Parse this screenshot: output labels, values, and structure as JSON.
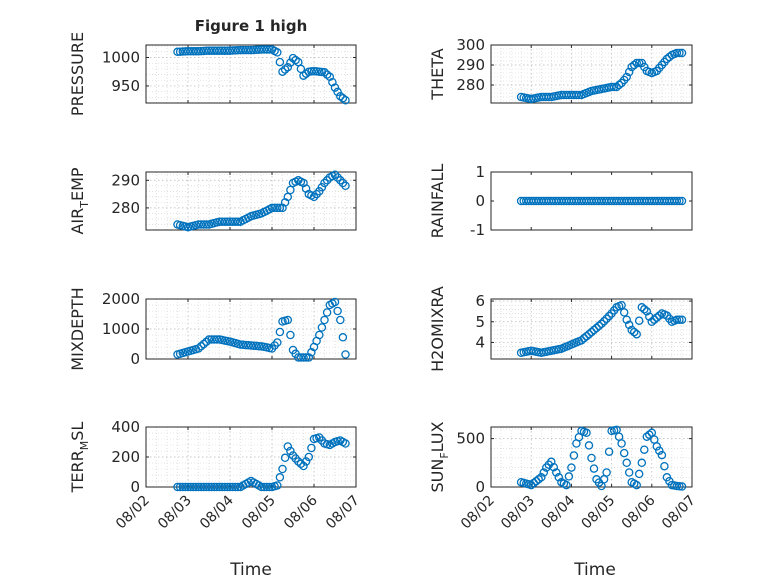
{
  "figure": {
    "title": "Figure 1 high",
    "time_label": "Time",
    "date_ticks": [
      "08/02",
      "08/03",
      "08/04",
      "08/05",
      "08/06",
      "08/07"
    ],
    "marker_color": "#0072BD",
    "marker_shape": "open-circle"
  },
  "chart_data": [
    {
      "type": "scatter",
      "id": "pressure",
      "ylabel": "PRESSURE",
      "ylim": [
        920,
        1022
      ],
      "yticks": [
        950,
        1000
      ],
      "xlim": [
        "08/02",
        "08/07"
      ],
      "grid": true,
      "series": [
        {
          "x": [
            "08/02 18:00",
            "08/03 00:00",
            "08/03 06:00",
            "08/03 12:00",
            "08/03 18:00",
            "08/04 00:00",
            "08/04 06:00",
            "08/04 12:00",
            "08/04 18:00",
            "08/05 00:00",
            "08/05 03:00",
            "08/05 06:00",
            "08/05 09:00",
            "08/05 12:00",
            "08/05 15:00",
            "08/05 18:00",
            "08/05 21:00",
            "08/06 00:00",
            "08/06 03:00",
            "08/06 06:00",
            "08/06 09:00",
            "08/06 12:00",
            "08/06 15:00",
            "08/06 18:00"
          ],
          "y": [
            1010,
            1011,
            1011,
            1012,
            1012,
            1012,
            1013,
            1013,
            1014,
            1014,
            1009,
            975,
            983,
            999,
            992,
            968,
            975,
            976,
            975,
            974,
            966,
            947,
            932,
            925
          ]
        }
      ]
    },
    {
      "type": "scatter",
      "id": "theta",
      "ylabel": "THETA",
      "ylim": [
        271,
        300
      ],
      "yticks": [
        280,
        290,
        300
      ],
      "xlim": [
        "08/02",
        "08/07"
      ],
      "grid": true,
      "series": [
        {
          "x": [
            "08/02 18:00",
            "08/03 00:00",
            "08/03 06:00",
            "08/03 12:00",
            "08/03 18:00",
            "08/04 00:00",
            "08/04 06:00",
            "08/04 12:00",
            "08/04 18:00",
            "08/05 00:00",
            "08/05 03:00",
            "08/05 06:00",
            "08/05 09:00",
            "08/05 12:00",
            "08/05 15:00",
            "08/05 18:00",
            "08/05 21:00",
            "08/06 00:00",
            "08/06 03:00",
            "08/06 06:00",
            "08/06 09:00",
            "08/06 12:00",
            "08/06 15:00",
            "08/06 18:00"
          ],
          "y": [
            274,
            273,
            274,
            274,
            275,
            275,
            275,
            277,
            278,
            279,
            279,
            281,
            284,
            289,
            291,
            291,
            287,
            286,
            287,
            290,
            293,
            295,
            296,
            296
          ]
        }
      ]
    },
    {
      "type": "scatter",
      "id": "air_temp",
      "ylabel": "AIR_TEMP",
      "ylim": [
        272,
        293
      ],
      "yticks": [
        280,
        290
      ],
      "xlim": [
        "08/02",
        "08/07"
      ],
      "grid": true,
      "series": [
        {
          "x": [
            "08/02 18:00",
            "08/03 00:00",
            "08/03 06:00",
            "08/03 12:00",
            "08/03 18:00",
            "08/04 00:00",
            "08/04 06:00",
            "08/04 12:00",
            "08/04 18:00",
            "08/05 00:00",
            "08/05 03:00",
            "08/05 06:00",
            "08/05 09:00",
            "08/05 12:00",
            "08/05 15:00",
            "08/05 18:00",
            "08/05 21:00",
            "08/06 00:00",
            "08/06 03:00",
            "08/06 06:00",
            "08/06 09:00",
            "08/06 12:00",
            "08/06 15:00",
            "08/06 18:00"
          ],
          "y": [
            274,
            273,
            274,
            274,
            275,
            275,
            275,
            277,
            278,
            280,
            280,
            280,
            284,
            289,
            290,
            289,
            285,
            284,
            286,
            289,
            291,
            292,
            290,
            288
          ]
        }
      ]
    },
    {
      "type": "scatter",
      "id": "rainfall",
      "ylabel": "RAINFALL",
      "ylim": [
        -1,
        1
      ],
      "yticks": [
        -1,
        0,
        1
      ],
      "xlim": [
        "08/02",
        "08/07"
      ],
      "grid": false,
      "series": [
        {
          "x": [
            "08/02 18:00",
            "08/03 00:00",
            "08/03 06:00",
            "08/03 12:00",
            "08/03 18:00",
            "08/04 00:00",
            "08/04 06:00",
            "08/04 12:00",
            "08/04 18:00",
            "08/05 00:00",
            "08/05 06:00",
            "08/05 12:00",
            "08/05 18:00",
            "08/06 00:00",
            "08/06 06:00",
            "08/06 12:00",
            "08/06 18:00"
          ],
          "y": [
            0,
            0,
            0,
            0,
            0,
            0,
            0,
            0,
            0,
            0,
            0,
            0,
            0,
            0,
            0,
            0,
            0
          ]
        }
      ]
    },
    {
      "type": "scatter",
      "id": "mixdepth",
      "ylabel": "MIXDEPTH",
      "ylim": [
        0,
        2000
      ],
      "yticks": [
        0,
        1000,
        2000
      ],
      "xlim": [
        "08/02",
        "08/07"
      ],
      "grid": true,
      "series": [
        {
          "x": [
            "08/02 18:00",
            "08/03 00:00",
            "08/03 06:00",
            "08/03 12:00",
            "08/03 18:00",
            "08/04 00:00",
            "08/04 06:00",
            "08/04 12:00",
            "08/04 18:00",
            "08/05 00:00",
            "08/05 03:00",
            "08/05 06:00",
            "08/05 09:00",
            "08/05 12:00",
            "08/05 15:00",
            "08/05 18:00",
            "08/05 21:00",
            "08/06 00:00",
            "08/06 03:00",
            "08/06 06:00",
            "08/06 09:00",
            "08/06 12:00",
            "08/06 15:00",
            "08/06 18:00"
          ],
          "y": [
            150,
            250,
            350,
            650,
            650,
            580,
            480,
            450,
            420,
            350,
            550,
            1250,
            1300,
            300,
            50,
            50,
            50,
            400,
            800,
            1300,
            1800,
            1900,
            1300,
            150
          ]
        }
      ]
    },
    {
      "type": "scatter",
      "id": "h2omixra",
      "ylabel": "H2OMIXRA",
      "ylim": [
        3.2,
        6.1
      ],
      "yticks": [
        4,
        5,
        6
      ],
      "xlim": [
        "08/02",
        "08/07"
      ],
      "grid": true,
      "series": [
        {
          "x": [
            "08/02 18:00",
            "08/03 00:00",
            "08/03 06:00",
            "08/03 12:00",
            "08/03 18:00",
            "08/04 00:00",
            "08/04 06:00",
            "08/04 12:00",
            "08/04 18:00",
            "08/05 00:00",
            "08/05 03:00",
            "08/05 06:00",
            "08/05 09:00",
            "08/05 12:00",
            "08/05 15:00",
            "08/05 18:00",
            "08/05 21:00",
            "08/06 00:00",
            "08/06 03:00",
            "08/06 06:00",
            "08/06 09:00",
            "08/06 12:00",
            "08/06 15:00",
            "08/06 18:00"
          ],
          "y": [
            3.5,
            3.6,
            3.5,
            3.6,
            3.7,
            3.9,
            4.1,
            4.5,
            4.9,
            5.4,
            5.7,
            5.8,
            5.1,
            4.6,
            4.4,
            5.7,
            5.5,
            5.0,
            5.2,
            5.4,
            5.3,
            5.0,
            5.1,
            5.1
          ]
        }
      ]
    },
    {
      "type": "scatter",
      "id": "terr_msl",
      "ylabel": "TERR_MSL",
      "ylim": [
        0,
        400
      ],
      "yticks": [
        0,
        200,
        400
      ],
      "xlim": [
        "08/02",
        "08/07"
      ],
      "grid": true,
      "series": [
        {
          "x": [
            "08/02 18:00",
            "08/03 00:00",
            "08/03 06:00",
            "08/03 12:00",
            "08/03 18:00",
            "08/04 00:00",
            "08/04 06:00",
            "08/04 12:00",
            "08/04 18:00",
            "08/05 00:00",
            "08/05 03:00",
            "08/05 06:00",
            "08/05 09:00",
            "08/05 12:00",
            "08/05 15:00",
            "08/05 18:00",
            "08/05 21:00",
            "08/06 00:00",
            "08/06 03:00",
            "08/06 06:00",
            "08/06 09:00",
            "08/06 12:00",
            "08/06 15:00",
            "08/06 18:00"
          ],
          "y": [
            0,
            0,
            0,
            0,
            0,
            0,
            0,
            40,
            0,
            0,
            10,
            120,
            270,
            210,
            170,
            140,
            200,
            320,
            330,
            290,
            280,
            300,
            310,
            290
          ]
        }
      ]
    },
    {
      "type": "scatter",
      "id": "sun_flux",
      "ylabel": "SUN_FLUX",
      "ylim": [
        0,
        620
      ],
      "yticks": [
        0,
        500
      ],
      "xlim": [
        "08/02",
        "08/07"
      ],
      "grid": true,
      "series": [
        {
          "x": [
            "08/02 18:00",
            "08/03 00:00",
            "08/03 06:00",
            "08/03 09:00",
            "08/03 12:00",
            "08/03 15:00",
            "08/03 18:00",
            "08/03 21:00",
            "08/04 00:00",
            "08/04 03:00",
            "08/04 06:00",
            "08/04 09:00",
            "08/04 12:00",
            "08/04 15:00",
            "08/04 18:00",
            "08/04 21:00",
            "08/05 00:00",
            "08/05 03:00",
            "08/05 06:00",
            "08/05 09:00",
            "08/05 12:00",
            "08/05 15:00",
            "08/05 18:00",
            "08/05 21:00",
            "08/06 00:00",
            "08/06 03:00",
            "08/06 06:00",
            "08/06 09:00",
            "08/06 12:00",
            "08/06 15:00",
            "08/06 18:00"
          ],
          "y": [
            50,
            20,
            100,
            200,
            260,
            150,
            50,
            20,
            200,
            450,
            580,
            560,
            300,
            80,
            10,
            150,
            580,
            590,
            450,
            250,
            50,
            20,
            250,
            520,
            560,
            420,
            330,
            100,
            20,
            10,
            5
          ]
        }
      ]
    }
  ]
}
